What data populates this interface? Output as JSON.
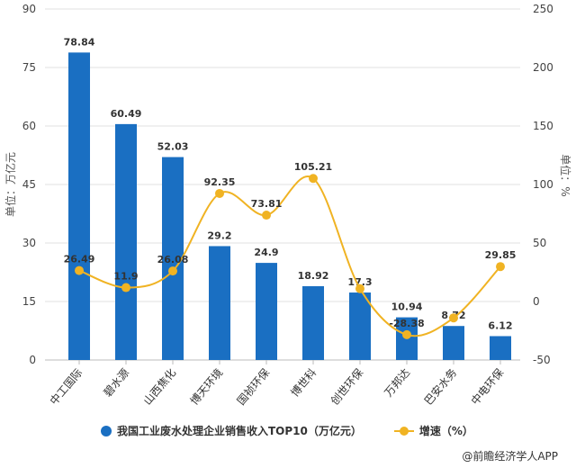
{
  "chart_data": {
    "type": "bar+line",
    "categories": [
      "中工国际",
      "碧水源",
      "山西焦化",
      "博天环境",
      "国祯环保",
      "博世科",
      "创世环保",
      "万邦达",
      "巴安水务",
      "中电环保"
    ],
    "series": [
      {
        "name": "我国工业废水处理企业销售收入TOP10（万亿元）",
        "type": "bar",
        "axis": "left",
        "color": "#1a6fc2",
        "values": [
          78.84,
          60.49,
          52.03,
          29.2,
          24.9,
          18.92,
          17.3,
          10.94,
          8.72,
          6.12
        ],
        "labels": [
          "78.84",
          "60.49",
          "52.03",
          "29.2",
          "24.9",
          "18.92",
          "17.3",
          "10.94",
          "8.72",
          "6.12"
        ]
      },
      {
        "name": "增速（%）",
        "type": "line",
        "axis": "right",
        "color": "#f0b323",
        "values": [
          26.49,
          11.9,
          26.08,
          92.35,
          73.81,
          105.21,
          11,
          -28.38,
          -14,
          29.85
        ],
        "labels": [
          "26.49",
          "11.9",
          "26.08",
          "92.35",
          "73.81",
          "105.21",
          "",
          "-28.38",
          "",
          "29.85"
        ]
      }
    ],
    "ylabel": "单位：万亿元",
    "y2label": "单位：%",
    "ylim": [
      0,
      90
    ],
    "yticks": [
      0,
      15,
      30,
      45,
      60,
      75,
      90
    ],
    "y2lim": [
      -50,
      250
    ],
    "y2ticks": [
      -50,
      0,
      50,
      100,
      150,
      200,
      250
    ],
    "grid": true,
    "legend": "bottom"
  },
  "legend": {
    "bar": "我国工业废水处理企业销售收入TOP10（万亿元）",
    "line": "增速（%）"
  },
  "source": "@前瞻经济学人APP"
}
